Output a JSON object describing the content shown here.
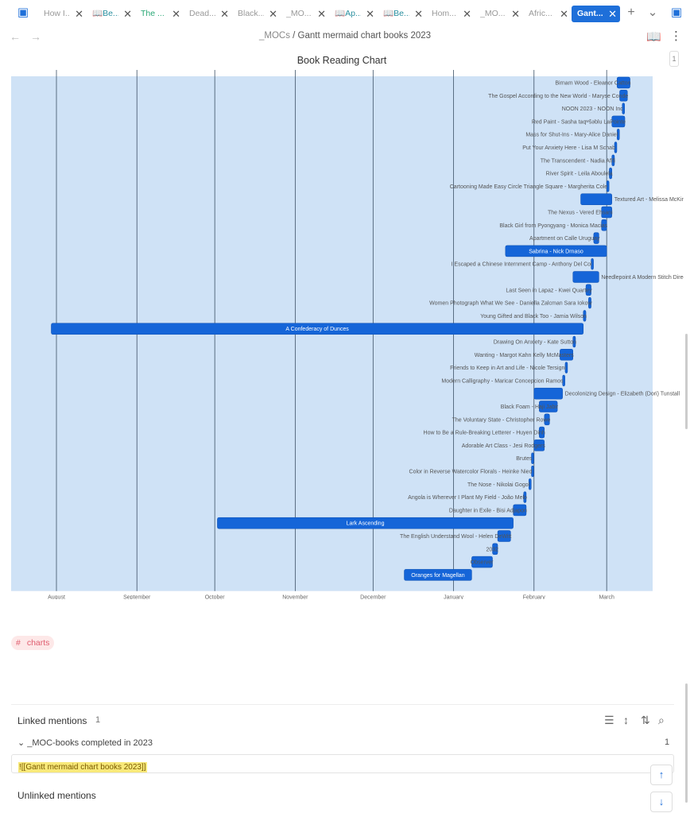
{
  "tabs": [
    {
      "label": "How I...",
      "style": "normal"
    },
    {
      "label": "📖Be...",
      "style": "teal"
    },
    {
      "label": "The ...",
      "style": "green"
    },
    {
      "label": "Dead...",
      "style": "normal"
    },
    {
      "label": "Black...",
      "style": "normal"
    },
    {
      "label": "_MO...",
      "style": "normal"
    },
    {
      "label": "📖Ap...",
      "style": "teal"
    },
    {
      "label": "📖Be...",
      "style": "teal"
    },
    {
      "label": "Hom...",
      "style": "normal"
    },
    {
      "label": "_MO...",
      "style": "normal"
    },
    {
      "label": "Afric...",
      "style": "normal"
    },
    {
      "label": "Gant...",
      "style": "active"
    }
  ],
  "tabbar": {
    "new_tab": "+",
    "dropdown": "⌄",
    "close": "✕"
  },
  "nav": {
    "back": "←",
    "forward": "→"
  },
  "breadcrumb": {
    "parent": "_MOCs",
    "separator": " / ",
    "current": "Gantt mermaid chart books 2023"
  },
  "page_counter": "1",
  "chart_data": {
    "type": "gantt",
    "title": "Book Reading Chart",
    "timeline_ticks": [
      {
        "label": "August",
        "day": 0
      },
      {
        "label": "September",
        "day": 31
      },
      {
        "label": "October",
        "day": 61
      },
      {
        "label": "November",
        "day": 92
      },
      {
        "label": "December",
        "day": 122
      },
      {
        "label": "January",
        "day": 153
      },
      {
        "label": "February",
        "day": 184
      },
      {
        "label": "March",
        "day": 212
      }
    ],
    "tasks": [
      {
        "name": "Birnam Wood - Eleanor Catton",
        "start": 216,
        "end": 221
      },
      {
        "name": "The Gospel According to the New World - Maryse Conde",
        "start": 217,
        "end": 220
      },
      {
        "name": "NOON 2023 - NOON Inc",
        "start": 218,
        "end": 218
      },
      {
        "name": "Red Paint - Sasha taqʷšəblu LaPointe",
        "start": 214,
        "end": 219
      },
      {
        "name": "Mass for Shut-Ins - Mary-Alice Daniel",
        "start": 216,
        "end": 216
      },
      {
        "name": "Put Your Anxiety Here - Lisa M Schab",
        "start": 215,
        "end": 215
      },
      {
        "name": "The Transcendent - Nadia Afifi",
        "start": 214,
        "end": 215
      },
      {
        "name": "River Spirit - Leila Aboulela",
        "start": 213,
        "end": 214
      },
      {
        "name": "Cartooning Made Easy Circle Triangle Square - Margherita Cole",
        "start": 212,
        "end": 212
      },
      {
        "name": "Textured Art - Melissa McKinnon",
        "start": 202,
        "end": 214
      },
      {
        "name": "The Nexus - Vered Ehsani",
        "start": 210,
        "end": 214
      },
      {
        "name": "Black Girl from Pyongyang - Monica Macias",
        "start": 210,
        "end": 212
      },
      {
        "name": "Apartment on Calle Uruguay",
        "start": 207,
        "end": 209
      },
      {
        "name": "Sabrina - Nick Drnaso",
        "start": 173,
        "end": 212
      },
      {
        "name": "I Escaped a Chinese Internment Camp - Anthony Del Col",
        "start": 206,
        "end": 206
      },
      {
        "name": "Needlepoint A Modern Stitch Directory - Emma Homent",
        "start": 199,
        "end": 209
      },
      {
        "name": "Last Seen in Lapaz - Kwei Quartey",
        "start": 204,
        "end": 206
      },
      {
        "name": "Women Photograph What We See - Daniella Zalcman Sara Iokow",
        "start": 205,
        "end": 206
      },
      {
        "name": "Young Gifted and Black Too - Jamia Wilson",
        "start": 203,
        "end": 204
      },
      {
        "name": "A Confederacy of Dunces",
        "start": -2,
        "end": 203
      },
      {
        "name": "Drawing On Anxiety - Kate Sutton",
        "start": 199,
        "end": 200
      },
      {
        "name": "Wanting - Margot Kahn Kelly McMasters",
        "start": 194,
        "end": 199
      },
      {
        "name": "Friends to Keep in Art and Life - Nicole Tersigni",
        "start": 196,
        "end": 196
      },
      {
        "name": "Modern Calligraphy - Maricar Concepcion Ramos",
        "start": 195,
        "end": 195
      },
      {
        "name": "Decolonizing Design - Elizabeth (Dori) Tunstall",
        "start": 184,
        "end": 195
      },
      {
        "name": "Black Foam - Haji Jabir",
        "start": 186,
        "end": 193
      },
      {
        "name": "The Voluntary State - Christopher Rowe",
        "start": 188,
        "end": 190
      },
      {
        "name": "How to Be a Rule-Breaking Letterer - Huyen Dinh",
        "start": 186,
        "end": 188
      },
      {
        "name": "Adorable Art Class - Jesi Rodgers",
        "start": 184,
        "end": 188
      },
      {
        "name": "Brutes",
        "start": 183,
        "end": 183
      },
      {
        "name": "Color in Reverse Watercolor Florals - Heinke Nied",
        "start": 183,
        "end": 183
      },
      {
        "name": "The Nose - Nikolai Gogol",
        "start": 182,
        "end": 182
      },
      {
        "name": "Angola is Wherever I Plant My Field - João Melo",
        "start": 180,
        "end": 181
      },
      {
        "name": "Daughter in Exile - Bisi Adjapon",
        "start": 176,
        "end": 181
      },
      {
        "name": "Lark Ascending",
        "start": 62,
        "end": 176
      },
      {
        "name": "The English Understand Wool - Helen DeWitt",
        "start": 170,
        "end": 175
      },
      {
        "name": "2032",
        "start": 168,
        "end": 170
      },
      {
        "name": "Observer",
        "start": 160,
        "end": 168
      },
      {
        "name": "Oranges for Magellan",
        "start": 134,
        "end": 160
      }
    ]
  },
  "tag": {
    "hash": "#",
    "label": "charts"
  },
  "backlinks": {
    "linked_title": "Linked mentions",
    "linked_count": "1",
    "group_label": "_MOC-books completed in 2023",
    "group_count": "1",
    "mention": "![[Gantt mermaid chart books 2023]]",
    "unlinked_title": "Unlinked mentions"
  },
  "icons": {
    "sidebar_left": "▣",
    "sidebar_right": "▣",
    "reading": "📖",
    "more": "⋮",
    "list": "☰",
    "sort_vertical": "↕",
    "sort_az": "⇅",
    "search": "⌕",
    "chevron": "⌄",
    "scroll_up": "↑",
    "scroll_down": "↓"
  }
}
